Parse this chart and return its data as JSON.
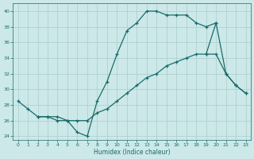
{
  "xlabel": "Humidex (Indice chaleur)",
  "bg_color": "#cce8e8",
  "grid_color": "#aacccc",
  "line_color": "#1a6b6b",
  "xlim": [
    -0.5,
    23.5
  ],
  "ylim": [
    23.5,
    41.0
  ],
  "xticks": [
    0,
    1,
    2,
    3,
    4,
    5,
    6,
    7,
    8,
    9,
    10,
    11,
    12,
    13,
    14,
    15,
    16,
    17,
    18,
    19,
    20,
    21,
    22,
    23
  ],
  "yticks": [
    24,
    26,
    28,
    30,
    32,
    34,
    36,
    38,
    40
  ],
  "line1_x": [
    0,
    1,
    2,
    3,
    4,
    5,
    6,
    7,
    8,
    9,
    10,
    11,
    12,
    13,
    14,
    15,
    16,
    17,
    18,
    19,
    20
  ],
  "line1_y": [
    28.5,
    27.5,
    26.5,
    26.5,
    26.0,
    26.0,
    24.5,
    24.0,
    28.5,
    31.0,
    34.5,
    37.5,
    38.5,
    40.0,
    40.0,
    39.5,
    39.5,
    39.5,
    38.5,
    38.0,
    38.5
  ],
  "line2_x": [
    2,
    3,
    4,
    5,
    6,
    7,
    8,
    9,
    10,
    11,
    12,
    13,
    14,
    15,
    16,
    17,
    18,
    19,
    20,
    21,
    22,
    23
  ],
  "line2_y": [
    26.5,
    26.5,
    26.5,
    26.0,
    26.0,
    26.0,
    27.0,
    27.5,
    28.5,
    29.5,
    30.5,
    31.5,
    32.0,
    33.0,
    33.5,
    34.0,
    34.5,
    34.5,
    34.5,
    32.0,
    30.5,
    29.5
  ],
  "line3_x": [
    19,
    20,
    21,
    22,
    23
  ],
  "line3_y": [
    34.5,
    38.5,
    32.0,
    30.5,
    29.5
  ]
}
